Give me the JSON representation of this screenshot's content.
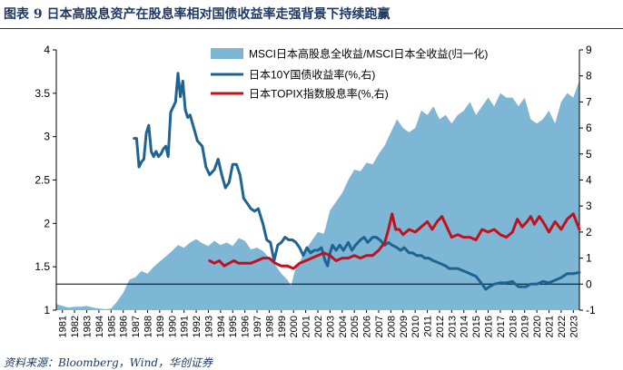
{
  "header": {
    "title": "图表 9    日本高股息资产在股息率相对国债收益率走强背景下持续跑赢"
  },
  "footer": {
    "source": "资料来源：Bloomberg，Wind，华创证券"
  },
  "chart_data": {
    "type": "line",
    "title": "",
    "x_ticks": [
      "1981",
      "1982",
      "1983",
      "1984",
      "1985",
      "1986",
      "1987",
      "1988",
      "1989",
      "1990",
      "1991",
      "1992",
      "1993",
      "1994",
      "1995",
      "1996",
      "1997",
      "1998",
      "1999",
      "2000",
      "2001",
      "2002",
      "2003",
      "2004",
      "2005",
      "2006",
      "2007",
      "2008",
      "2009",
      "2010",
      "2011",
      "2012",
      "2013",
      "2014",
      "2015",
      "2016",
      "2017",
      "2018",
      "2019",
      "2020",
      "2021",
      "2022",
      "2023"
    ],
    "xlim": [
      1981,
      2024
    ],
    "left_axis": {
      "ylim": [
        1,
        4
      ],
      "ticks": [
        "1",
        "1.5",
        "2",
        "2.5",
        "3",
        "3.5",
        "4"
      ]
    },
    "right_axis": {
      "ylim": [
        -1,
        9
      ],
      "ticks": [
        "-1",
        "0",
        "1",
        "2",
        "3",
        "4",
        "5",
        "6",
        "7",
        "8",
        "9"
      ]
    },
    "grid": false,
    "legend_position": "top-center",
    "series": [
      {
        "name": "MSCI日本高股息全收益/MSCI日本全收益(归一化)",
        "type": "area",
        "axis": "left",
        "color": "#7db7d5",
        "x": [
          1981,
          1981.5,
          1982,
          1982.5,
          1983,
          1983.5,
          1984,
          1984.5,
          1985,
          1985.5,
          1986,
          1986.5,
          1987,
          1987.5,
          1988,
          1988.5,
          1989,
          1989.5,
          1990,
          1990.5,
          1991,
          1991.5,
          1992,
          1992.5,
          1993,
          1993.5,
          1994,
          1994.5,
          1995,
          1995.5,
          1996,
          1996.5,
          1997,
          1997.5,
          1998,
          1998.5,
          1999,
          1999.5,
          2000,
          2000.3,
          2000.6,
          2001,
          2001.5,
          2002,
          2002.5,
          2003,
          2003.5,
          2004,
          2004.5,
          2005,
          2005.5,
          2006,
          2006.5,
          2007,
          2007.5,
          2008,
          2008.5,
          2009,
          2009.5,
          2010,
          2010.5,
          2011,
          2011.5,
          2012,
          2012.5,
          2013,
          2013.5,
          2014,
          2014.5,
          2015,
          2015.5,
          2016,
          2016.5,
          2017,
          2017.5,
          2018,
          2018.5,
          2019,
          2019.5,
          2020,
          2020.5,
          2021,
          2021.5,
          2022,
          2022.5,
          2023,
          2023.5,
          2024
        ],
        "y": [
          1.07,
          1.05,
          1.03,
          1.04,
          1.04,
          1.05,
          1.03,
          1.02,
          1.01,
          1.02,
          1.1,
          1.2,
          1.35,
          1.38,
          1.45,
          1.42,
          1.5,
          1.56,
          1.62,
          1.68,
          1.75,
          1.72,
          1.78,
          1.82,
          1.77,
          1.74,
          1.8,
          1.75,
          1.78,
          1.74,
          1.83,
          1.8,
          1.7,
          1.72,
          1.68,
          1.6,
          1.52,
          1.42,
          1.35,
          1.28,
          1.45,
          1.55,
          1.7,
          1.8,
          1.9,
          1.88,
          2.15,
          2.25,
          2.35,
          2.5,
          2.62,
          2.6,
          2.7,
          2.68,
          2.8,
          2.9,
          3.05,
          3.2,
          3.1,
          3.05,
          3.1,
          3.3,
          3.25,
          3.35,
          3.2,
          3.25,
          3.15,
          3.25,
          3.3,
          3.4,
          3.25,
          3.35,
          3.45,
          3.35,
          3.5,
          3.45,
          3.45,
          3.35,
          3.45,
          3.2,
          3.15,
          3.2,
          3.3,
          3.15,
          3.4,
          3.5,
          3.45,
          3.65
        ]
      },
      {
        "name": "日本10Y国债收益率(%,右)",
        "type": "line",
        "axis": "right",
        "color": "#1f6392",
        "x": [
          1987.4,
          1987.6,
          1987.8,
          1988.0,
          1988.2,
          1988.4,
          1988.6,
          1988.8,
          1989.0,
          1989.2,
          1989.4,
          1989.6,
          1989.8,
          1990.0,
          1990.2,
          1990.4,
          1990.6,
          1990.8,
          1991.0,
          1991.2,
          1991.4,
          1991.6,
          1991.8,
          1992.0,
          1992.3,
          1992.6,
          1993.0,
          1993.3,
          1993.6,
          1994.0,
          1994.3,
          1994.6,
          1994.9,
          1995.2,
          1995.5,
          1995.8,
          1996.1,
          1996.4,
          1996.7,
          1997.0,
          1997.3,
          1997.6,
          1998.0,
          1998.3,
          1998.6,
          1998.9,
          1999.2,
          1999.5,
          1999.8,
          2000.1,
          2000.4,
          2000.7,
          2001.0,
          2001.3,
          2001.6,
          2001.9,
          2002.2,
          2002.5,
          2002.8,
          2003.1,
          2003.3,
          2003.5,
          2003.7,
          2004.0,
          2004.3,
          2004.6,
          2005.0,
          2005.3,
          2005.6,
          2006.0,
          2006.3,
          2006.6,
          2007.0,
          2007.3,
          2007.6,
          2008.0,
          2008.3,
          2008.6,
          2009.0,
          2009.3,
          2009.6,
          2010.0,
          2010.3,
          2010.6,
          2011.0,
          2011.3,
          2011.6,
          2012.0,
          2012.5,
          2013.0,
          2013.3,
          2013.6,
          2014.0,
          2014.5,
          2015.0,
          2015.5,
          2016.0,
          2016.3,
          2016.6,
          2017.0,
          2017.5,
          2018.0,
          2018.5,
          2019.0,
          2019.3,
          2019.6,
          2020.0,
          2020.5,
          2021.0,
          2021.5,
          2022.0,
          2022.5,
          2023.0,
          2023.5,
          2024.0
        ],
        "y": [
          5.6,
          5.6,
          4.5,
          4.7,
          4.8,
          5.8,
          6.1,
          5.1,
          4.9,
          5.1,
          4.9,
          5.0,
          5.2,
          5.3,
          4.9,
          6.6,
          6.8,
          7.0,
          8.1,
          7.2,
          7.8,
          6.7,
          6.4,
          6.5,
          6.0,
          5.5,
          5.3,
          4.5,
          4.2,
          4.4,
          4.8,
          4.2,
          3.7,
          3.9,
          4.6,
          4.6,
          4.2,
          3.3,
          3.1,
          2.9,
          2.8,
          2.9,
          2.3,
          1.7,
          1.6,
          0.9,
          1.5,
          1.6,
          1.8,
          1.7,
          1.7,
          1.6,
          1.4,
          1.1,
          1.4,
          1.2,
          1.3,
          1.3,
          1.4,
          0.9,
          0.7,
          1.2,
          1.5,
          1.3,
          1.5,
          1.3,
          1.6,
          1.3,
          1.5,
          1.7,
          1.8,
          1.6,
          1.8,
          1.8,
          1.7,
          1.5,
          1.6,
          1.5,
          1.4,
          1.3,
          1.4,
          1.2,
          1.2,
          1.1,
          1.1,
          1.0,
          1.0,
          0.9,
          0.8,
          0.7,
          0.6,
          0.6,
          0.6,
          0.5,
          0.4,
          0.3,
          0.0,
          -0.2,
          -0.1,
          0.0,
          0.05,
          0.05,
          0.1,
          -0.1,
          -0.1,
          -0.1,
          0.0,
          0.0,
          0.1,
          0.05,
          0.15,
          0.25,
          0.4,
          0.4,
          0.45
        ]
      },
      {
        "name": "日本TOPIX指数股息率(%,右)",
        "type": "line",
        "axis": "right",
        "color": "#c0111f",
        "x": [
          1993.6,
          1994.0,
          1994.4,
          1994.8,
          1995.2,
          1995.6,
          1996.0,
          1996.5,
          1997.0,
          1997.5,
          1998.0,
          1998.5,
          1999.0,
          1999.5,
          2000.0,
          2000.5,
          2001.0,
          2001.5,
          2002.0,
          2002.5,
          2003.0,
          2003.5,
          2004.0,
          2004.5,
          2005.0,
          2005.5,
          2006.0,
          2006.5,
          2007.0,
          2007.5,
          2008.0,
          2008.3,
          2008.6,
          2008.9,
          2009.2,
          2009.5,
          2010.0,
          2010.5,
          2011.0,
          2011.5,
          2011.9,
          2012.3,
          2012.7,
          2013.0,
          2013.5,
          2014.0,
          2014.5,
          2015.0,
          2015.5,
          2016.0,
          2016.5,
          2017.0,
          2017.5,
          2018.0,
          2018.5,
          2018.9,
          2019.3,
          2019.7,
          2020.0,
          2020.3,
          2020.7,
          2021.0,
          2021.5,
          2022.0,
          2022.5,
          2023.0,
          2023.5,
          2024.0
        ],
        "y": [
          0.9,
          0.8,
          0.9,
          0.7,
          0.8,
          0.9,
          0.8,
          0.8,
          0.8,
          0.9,
          1.0,
          1.0,
          0.8,
          0.7,
          0.7,
          0.6,
          0.8,
          0.9,
          1.0,
          1.1,
          1.2,
          1.1,
          0.9,
          1.0,
          1.0,
          1.1,
          1.0,
          1.1,
          1.1,
          1.3,
          1.6,
          2.1,
          2.7,
          2.1,
          2.1,
          1.9,
          2.1,
          2.0,
          2.2,
          2.4,
          2.1,
          2.4,
          2.6,
          2.3,
          1.8,
          1.9,
          1.8,
          1.8,
          1.7,
          2.1,
          2.0,
          2.1,
          1.9,
          1.8,
          2.0,
          2.5,
          2.2,
          2.4,
          2.6,
          2.3,
          2.6,
          2.4,
          2.0,
          2.4,
          2.1,
          2.5,
          2.7,
          2.1
        ]
      }
    ]
  }
}
